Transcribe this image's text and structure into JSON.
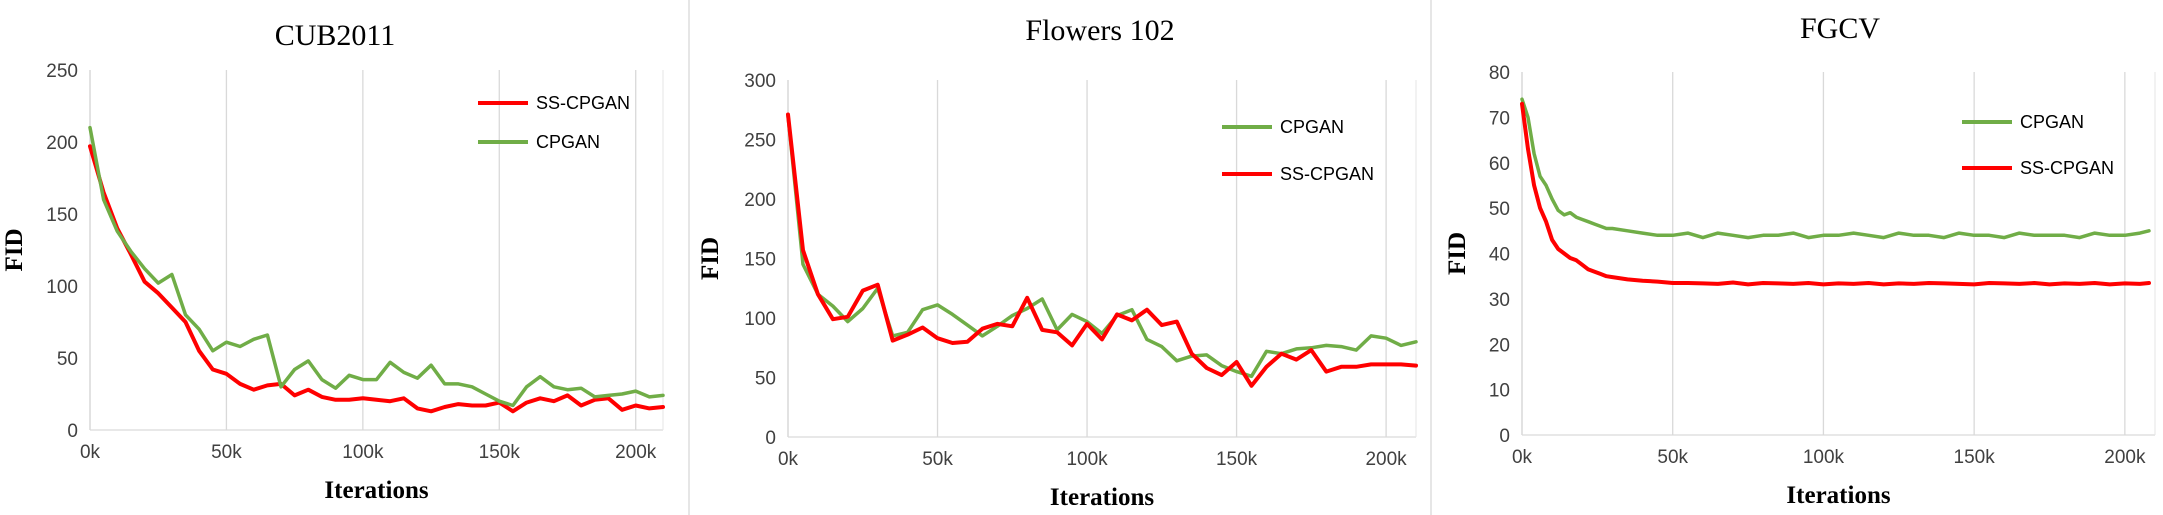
{
  "chart_data": [
    {
      "type": "line",
      "title": "CUB2011",
      "xlabel": "Iterations",
      "ylabel": "FID",
      "xlim": [
        0,
        210
      ],
      "ylim": [
        0,
        250
      ],
      "y_ticks": [
        "0",
        "50",
        "100",
        "150",
        "200",
        "250"
      ],
      "x_ticks": [
        "0k",
        "50k",
        "100k",
        "150k",
        "200k"
      ],
      "grid": "vertical",
      "legend": {
        "placement": "top-right"
      },
      "series": [
        {
          "name": "SS-CPGAN",
          "color": "#ff0000",
          "x": [
            0,
            5,
            10,
            15,
            20,
            25,
            30,
            35,
            40,
            45,
            50,
            55,
            60,
            65,
            70,
            75,
            80,
            85,
            90,
            95,
            100,
            105,
            110,
            115,
            120,
            125,
            130,
            135,
            140,
            145,
            150,
            155,
            160,
            165,
            170,
            175,
            180,
            185,
            190,
            195,
            200,
            205,
            210
          ],
          "values": [
            197,
            165,
            140,
            122,
            103,
            95,
            85,
            75,
            55,
            42,
            39,
            32,
            28,
            31,
            32,
            24,
            28,
            23,
            21,
            21,
            22,
            21,
            20,
            22,
            15,
            13,
            16,
            18,
            17,
            17,
            19,
            13,
            19,
            22,
            20,
            24,
            17,
            21,
            22,
            14,
            17,
            15,
            16
          ]
        },
        {
          "name": "CPGAN",
          "color": "#70ad47",
          "x": [
            0,
            5,
            10,
            15,
            20,
            25,
            30,
            35,
            40,
            45,
            50,
            55,
            60,
            65,
            70,
            75,
            80,
            85,
            90,
            95,
            100,
            105,
            110,
            115,
            120,
            125,
            130,
            135,
            140,
            145,
            150,
            155,
            160,
            165,
            170,
            175,
            180,
            185,
            190,
            195,
            200,
            205,
            210
          ],
          "values": [
            210,
            160,
            138,
            124,
            112,
            102,
            108,
            80,
            70,
            55,
            61,
            58,
            63,
            66,
            30,
            42,
            48,
            35,
            29,
            38,
            35,
            35,
            47,
            40,
            36,
            45,
            32,
            32,
            30,
            25,
            20,
            17,
            30,
            37,
            30,
            28,
            29,
            23,
            24,
            25,
            27,
            23,
            24
          ]
        }
      ]
    },
    {
      "type": "line",
      "title": "Flowers 102",
      "xlabel": "Iterations",
      "ylabel": "FID",
      "xlim": [
        0,
        210
      ],
      "ylim": [
        0,
        300
      ],
      "y_ticks": [
        "0",
        "50",
        "100",
        "150",
        "200",
        "250",
        "300"
      ],
      "x_ticks": [
        "0k",
        "50k",
        "100k",
        "150k",
        "200k"
      ],
      "grid": "vertical",
      "legend": {
        "placement": "top-right"
      },
      "series": [
        {
          "name": "CPGAN",
          "color": "#70ad47",
          "x": [
            0,
            5,
            10,
            15,
            20,
            25,
            30,
            35,
            40,
            45,
            50,
            55,
            60,
            65,
            70,
            75,
            80,
            85,
            90,
            95,
            100,
            105,
            110,
            115,
            120,
            125,
            130,
            135,
            140,
            145,
            150,
            155,
            160,
            165,
            170,
            175,
            180,
            185,
            190,
            195,
            200,
            205,
            210
          ],
          "values": [
            270,
            145,
            120,
            110,
            97,
            108,
            125,
            85,
            88,
            107,
            111,
            103,
            94,
            85,
            93,
            102,
            108,
            116,
            90,
            103,
            97,
            87,
            102,
            107,
            82,
            76,
            64,
            68,
            69,
            60,
            55,
            51,
            72,
            70,
            74,
            75,
            77,
            76,
            73,
            85,
            83,
            77,
            80
          ]
        },
        {
          "name": "SS-CPGAN",
          "color": "#ff0000",
          "x": [
            0,
            5,
            10,
            15,
            20,
            25,
            30,
            35,
            40,
            45,
            50,
            55,
            60,
            65,
            70,
            75,
            80,
            85,
            90,
            95,
            100,
            105,
            110,
            115,
            120,
            125,
            130,
            135,
            140,
            145,
            150,
            155,
            160,
            165,
            170,
            175,
            180,
            185,
            190,
            195,
            200,
            205,
            210
          ],
          "values": [
            271,
            157,
            120,
            99,
            101,
            123,
            128,
            81,
            86,
            92,
            83,
            79,
            80,
            91,
            95,
            93,
            117,
            90,
            88,
            77,
            95,
            82,
            103,
            98,
            107,
            94,
            97,
            70,
            58,
            52,
            63,
            43,
            59,
            70,
            65,
            73,
            55,
            59,
            59,
            61,
            61,
            61,
            60
          ]
        }
      ]
    },
    {
      "type": "line",
      "title": "FGCV",
      "xlabel": "Iterations",
      "ylabel": "FID",
      "xlim": [
        0,
        210
      ],
      "ylim": [
        0,
        80
      ],
      "y_ticks": [
        "0",
        "10",
        "20",
        "30",
        "40",
        "50",
        "60",
        "70",
        "80"
      ],
      "x_ticks": [
        "0k",
        "50k",
        "100k",
        "150k",
        "200k"
      ],
      "grid": "vertical",
      "legend": {
        "placement": "top-right"
      },
      "series": [
        {
          "name": "CPGAN",
          "color": "#70ad47",
          "x": [
            0,
            2,
            4,
            6,
            8,
            10,
            12,
            14,
            16,
            18,
            20,
            22,
            24,
            26,
            28,
            30,
            35,
            40,
            45,
            50,
            55,
            60,
            65,
            70,
            75,
            80,
            85,
            90,
            95,
            100,
            105,
            110,
            115,
            120,
            125,
            130,
            135,
            140,
            145,
            150,
            155,
            160,
            165,
            170,
            175,
            180,
            185,
            190,
            195,
            200,
            205,
            208
          ],
          "values": [
            74,
            70,
            62,
            57,
            55,
            52,
            49.5,
            48.5,
            49,
            48,
            47.5,
            47,
            46.5,
            46,
            45.5,
            45.5,
            45,
            44.5,
            44,
            44,
            44.5,
            43.5,
            44.5,
            44,
            43.5,
            44,
            44,
            44.5,
            43.5,
            44,
            44,
            44.5,
            44,
            43.5,
            44.5,
            44,
            44,
            43.5,
            44.5,
            44,
            44,
            43.5,
            44.5,
            44,
            44,
            44,
            43.5,
            44.5,
            44,
            44,
            44.5,
            45
          ]
        },
        {
          "name": "SS-CPGAN",
          "color": "#ff0000",
          "x": [
            0,
            2,
            4,
            6,
            8,
            10,
            12,
            14,
            16,
            18,
            20,
            22,
            24,
            26,
            28,
            30,
            35,
            40,
            45,
            50,
            55,
            60,
            65,
            70,
            75,
            80,
            85,
            90,
            95,
            100,
            105,
            110,
            115,
            120,
            125,
            130,
            135,
            140,
            145,
            150,
            155,
            160,
            165,
            170,
            175,
            180,
            185,
            190,
            195,
            200,
            205,
            208
          ],
          "values": [
            73,
            63,
            55,
            50,
            47,
            43,
            41,
            40,
            39,
            38.5,
            37.5,
            36.5,
            36,
            35.5,
            35,
            34.8,
            34.3,
            34,
            33.8,
            33.5,
            33.5,
            33.4,
            33.3,
            33.6,
            33.2,
            33.5,
            33.4,
            33.3,
            33.5,
            33.2,
            33.4,
            33.3,
            33.5,
            33.2,
            33.4,
            33.3,
            33.5,
            33.4,
            33.3,
            33.2,
            33.5,
            33.4,
            33.3,
            33.5,
            33.2,
            33.4,
            33.3,
            33.5,
            33.2,
            33.4,
            33.3,
            33.5
          ]
        }
      ]
    }
  ]
}
